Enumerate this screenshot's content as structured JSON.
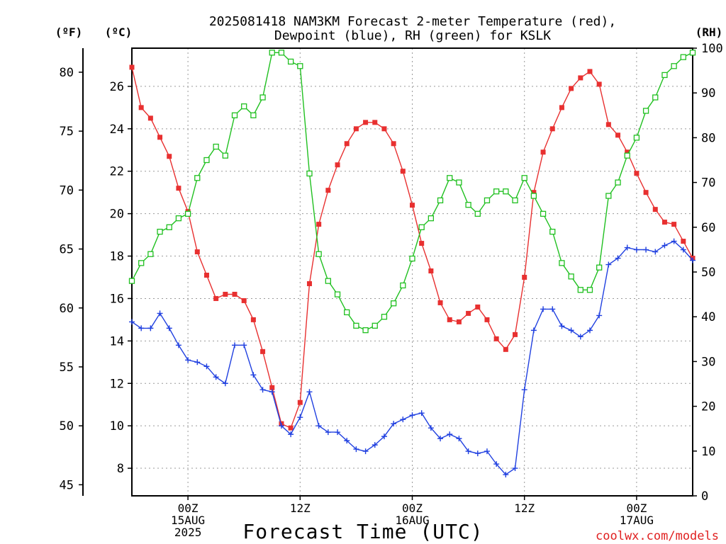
{
  "header": {
    "title_line1": "2025081418 NAM3KM Forecast 2-meter Temperature (red),",
    "title_line2": "Dewpoint (blue), RH (green) for KSLK",
    "unit_f": "(ºF)",
    "unit_c": "(ºC)",
    "unit_rh": "(RH)"
  },
  "footer": {
    "xlabel": "Forecast Time (UTC)",
    "credit": "coolwx.com/models"
  },
  "chart_data": {
    "type": "line",
    "title": "2025081418 NAM3KM Forecast 2-meter Temperature (red), Dewpoint (blue), RH (green) for KSLK",
    "xlabel": "Forecast Time (UTC)",
    "x_unit": "forecast hour from 2025-08-14 18Z",
    "xlim": [
      0,
      60
    ],
    "x_ticks": [
      {
        "x": 6,
        "lines": [
          "00Z",
          "15AUG",
          "2025"
        ]
      },
      {
        "x": 18,
        "lines": [
          "12Z"
        ]
      },
      {
        "x": 30,
        "lines": [
          "00Z",
          "16AUG"
        ]
      },
      {
        "x": 42,
        "lines": [
          "12Z"
        ]
      },
      {
        "x": 54,
        "lines": [
          "00Z",
          "17AUG"
        ]
      }
    ],
    "y_left_c": {
      "label": "(ºC)",
      "lim": [
        6.7,
        27.8
      ],
      "ticks": [
        8,
        10,
        12,
        14,
        16,
        18,
        20,
        22,
        24,
        26
      ]
    },
    "y_left_f": {
      "label": "(ºF)",
      "ticks": [
        45,
        50,
        55,
        60,
        65,
        70,
        75,
        80
      ]
    },
    "y_right_rh": {
      "label": "(RH)",
      "lim": [
        0,
        100
      ],
      "ticks": [
        0,
        10,
        20,
        30,
        40,
        50,
        60,
        70,
        80,
        90,
        100
      ]
    },
    "grid": true,
    "x": [
      0,
      1,
      2,
      3,
      4,
      5,
      6,
      7,
      8,
      9,
      10,
      11,
      12,
      13,
      14,
      15,
      16,
      17,
      18,
      19,
      20,
      21,
      22,
      23,
      24,
      25,
      26,
      27,
      28,
      29,
      30,
      31,
      32,
      33,
      34,
      35,
      36,
      37,
      38,
      39,
      40,
      41,
      42,
      43,
      44,
      45,
      46,
      47,
      48,
      49,
      50,
      51,
      52,
      53,
      54,
      55,
      56,
      57,
      58,
      59,
      60
    ],
    "series": [
      {
        "name": "Temperature",
        "axis": "C",
        "color": "#e83030",
        "marker": "filled-square",
        "values": [
          26.9,
          25.0,
          24.5,
          23.6,
          22.7,
          21.2,
          20.1,
          18.2,
          17.1,
          16.0,
          16.2,
          16.2,
          15.9,
          15.0,
          13.5,
          11.8,
          10.1,
          9.9,
          11.1,
          16.7,
          19.5,
          21.1,
          22.3,
          23.3,
          24.0,
          24.3,
          24.3,
          24.0,
          23.3,
          22.0,
          20.4,
          18.6,
          17.3,
          15.8,
          15.0,
          14.9,
          15.3,
          15.6,
          15.0,
          14.1,
          13.6,
          14.3,
          17.0,
          21.0,
          22.9,
          24.0,
          25.0,
          25.9,
          26.4,
          26.7,
          26.1,
          24.2,
          23.7,
          22.9,
          21.9,
          21.0,
          20.2,
          19.6,
          19.5,
          18.7,
          17.9
        ]
      },
      {
        "name": "Dewpoint",
        "axis": "C",
        "color": "#2040e0",
        "marker": "plus",
        "values": [
          14.9,
          14.6,
          14.6,
          15.3,
          14.6,
          13.8,
          13.1,
          13.0,
          12.8,
          12.3,
          12.0,
          13.8,
          13.8,
          12.4,
          11.7,
          11.6,
          10.0,
          9.6,
          10.4,
          11.6,
          10.0,
          9.7,
          9.7,
          9.3,
          8.9,
          8.8,
          9.1,
          9.5,
          10.1,
          10.3,
          10.5,
          10.6,
          9.9,
          9.4,
          9.6,
          9.4,
          8.8,
          8.7,
          8.8,
          8.2,
          7.7,
          8.0,
          11.7,
          14.5,
          15.5,
          15.5,
          14.7,
          14.5,
          14.2,
          14.5,
          15.2,
          17.6,
          17.9,
          18.4,
          18.3,
          18.3,
          18.2,
          18.5,
          18.7,
          18.3,
          17.8
        ]
      },
      {
        "name": "RH",
        "axis": "RH",
        "color": "#20c020",
        "marker": "open-square",
        "values": [
          48,
          52,
          54,
          59,
          60,
          62,
          63,
          71,
          75,
          78,
          76,
          85,
          87,
          85,
          89,
          99,
          99,
          97,
          96,
          72,
          54,
          48,
          45,
          41,
          38,
          37,
          38,
          40,
          43,
          47,
          53,
          60,
          62,
          66,
          71,
          70,
          65,
          63,
          66,
          68,
          68,
          66,
          71,
          67,
          63,
          59,
          52,
          49,
          46,
          46,
          51,
          67,
          70,
          76,
          80,
          86,
          89,
          94,
          96,
          98,
          99
        ]
      }
    ]
  }
}
